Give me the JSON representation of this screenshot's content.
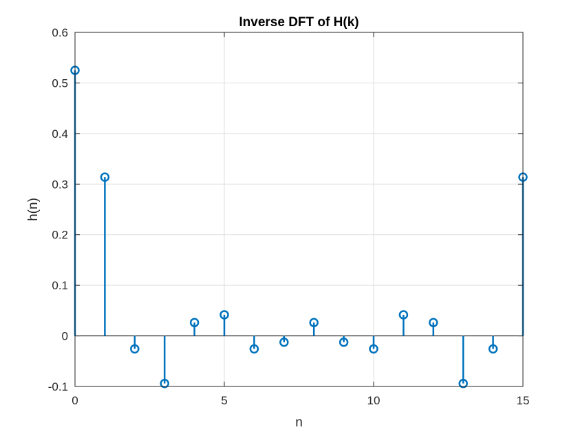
{
  "chart_data": {
    "type": "stem",
    "title": "Inverse DFT of H(k)",
    "xlabel": "n",
    "ylabel": "h(n)",
    "xlim": [
      0,
      15
    ],
    "ylim": [
      -0.1,
      0.6
    ],
    "xticks": [
      0,
      5,
      10,
      15
    ],
    "xtick_labels": [
      "0",
      "5",
      "10",
      "15"
    ],
    "yticks": [
      -0.1,
      0,
      0.1,
      0.2,
      0.3,
      0.4,
      0.5,
      0.6
    ],
    "ytick_labels": [
      "-0.1",
      "0",
      "0.1",
      "0.2",
      "0.3",
      "0.4",
      "0.5",
      "0.6"
    ],
    "grid": true,
    "color": "#0072BD",
    "marker": "circle",
    "x": [
      0,
      1,
      2,
      3,
      4,
      5,
      6,
      7,
      8,
      9,
      10,
      11,
      12,
      13,
      14,
      15
    ],
    "y": [
      0.525,
      0.3138,
      -0.0257,
      -0.0941,
      0.0263,
      0.0417,
      -0.0257,
      -0.0125,
      0.0263,
      -0.0125,
      -0.0257,
      0.0417,
      0.0263,
      -0.0941,
      -0.0257,
      0.3138
    ]
  }
}
